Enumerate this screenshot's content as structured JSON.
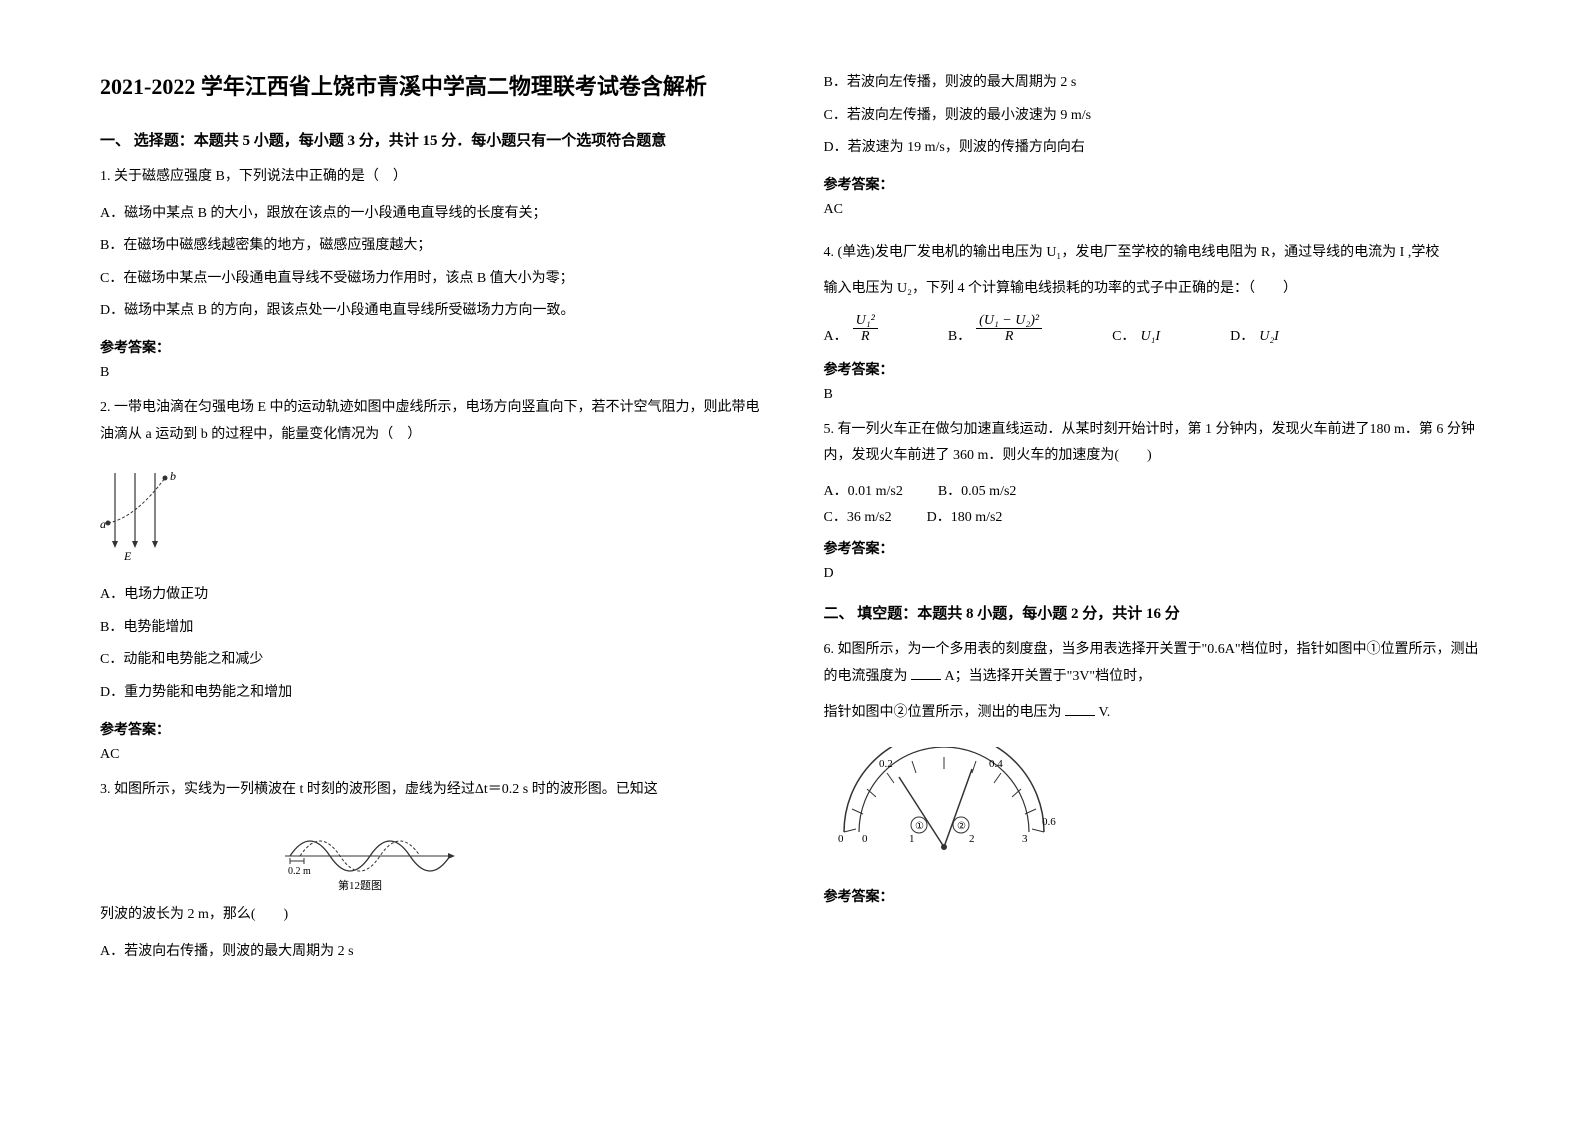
{
  "title": "2021-2022 学年江西省上饶市青溪中学高二物理联考试卷含解析",
  "section1": {
    "header": "一、 选择题：本题共 5 小题，每小题 3 分，共计 15 分．每小题只有一个选项符合题意",
    "q1": {
      "text": "1. 关于磁感应强度 B，下列说法中正确的是（　）",
      "optA": "A．磁场中某点 B 的大小，跟放在该点的一小段通电直导线的长度有关；",
      "optB": "B．在磁场中磁感线越密集的地方，磁感应强度越大；",
      "optC": "C．在磁场中某点一小段通电直导线不受磁场力作用时，该点 B 值大小为零；",
      "optD": "D．磁场中某点 B 的方向，跟该点处一小段通电直导线所受磁场力方向一致。",
      "answerLabel": "参考答案：",
      "answer": "B"
    },
    "q2": {
      "text": "2. 一带电油滴在匀强电场 E 中的运动轨迹如图中虚线所示，电场方向竖直向下，若不计空气阻力，则此带电油滴从 a 运动到 b 的过程中，能量变化情况为（　）",
      "optA": "A．电场力做正功",
      "optB": "B．电势能增加",
      "optC": "C．动能和电势能之和减少",
      "optD": "D．重力势能和电势能之和增加",
      "answerLabel": "参考答案：",
      "answer": "AC",
      "figLabels": {
        "a": "a",
        "b": "b",
        "E": "E"
      }
    },
    "q3": {
      "text": "3. 如图所示，实线为一列横波在 t 时刻的波形图，虚线为经过Δt＝0.2 s 时的波形图。已知这",
      "text2": "列波的波长为 2 m，那么(　　)",
      "optA": "A．若波向右传播，则波的最大周期为 2 s",
      "figCaption": "第12题图",
      "figXLabel": "0.2 m"
    }
  },
  "col2": {
    "q3cont": {
      "optB": "B．若波向左传播，则波的最大周期为 2 s",
      "optC": "C．若波向左传播，则波的最小波速为 9 m/s",
      "optD": "D．若波速为 19 m/s，则波的传播方向向右",
      "answerLabel": "参考答案：",
      "answer": "AC"
    },
    "q4": {
      "text": "4. (单选)发电厂发电机的输出电压为 U₁，发电厂至学校的输电线电阻为 R，通过导线的电流为 I ,学校",
      "text2": "输入电压为 U₂，下列 4 个计算输电线损耗的功率的式子中正确的是：（　　）",
      "optA_label": "A．",
      "optB_label": "B．",
      "optC_label": "C．",
      "optC_val": "U₁I",
      "optD_label": "D．",
      "optD_val": "U₂I",
      "frac1_num": "U₁²",
      "frac1_den": "R",
      "frac2_num": "(U₁ − U₂)²",
      "frac2_den": "R",
      "answerLabel": "参考答案：",
      "answer": "B"
    },
    "q5": {
      "text": "5. 有一列火车正在做匀加速直线运动．从某时刻开始计时，第 1 分钟内，发现火车前进了180 m．第 6 分钟内，发现火车前进了 360 m．则火车的加速度为(　　)",
      "optA": "A．0.01 m/s2",
      "optB": "B．0.05 m/s2",
      "optC": "C．36 m/s2",
      "optD": "D．180 m/s2",
      "answerLabel": "参考答案：",
      "answer": "D"
    }
  },
  "section2": {
    "header": "二、 填空题：本题共 8 小题，每小题 2 分，共计 16 分",
    "q6": {
      "text": "6. 如图所示，为一个多用表的刻度盘，当多用表选择开关置于\"0.6A\"档位时，指针如图中①位置所示，测出的电流强度为 ____ A；当选择开关置于\"3V\"档位时，",
      "text2": "指针如图中②位置所示，测出的电压为 ____ V.",
      "answerLabel": "参考答案：",
      "dialLabels": {
        "l0": "0",
        "l02": "0.2",
        "l04": "0.4",
        "l06": "0.6",
        "s0": "0",
        "s1": "1",
        "s2": "2",
        "s3": "3",
        "p1": "①",
        "p2": "②"
      }
    }
  },
  "colors": {
    "text": "#000000",
    "bg": "#ffffff",
    "figStroke": "#333333"
  }
}
